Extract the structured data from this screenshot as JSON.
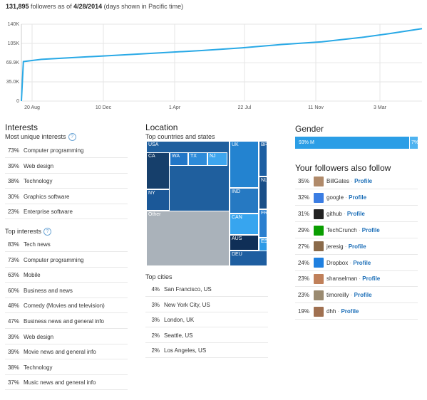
{
  "header": {
    "count": "131,895",
    "text_mid": " followers as of ",
    "date": "4/28/2014",
    "text_end": " (days shown in Pacific time)"
  },
  "chart_data": {
    "type": "line",
    "title": "",
    "y_ticks": [
      "140K",
      "105K",
      "69.9K",
      "35.0K",
      "0"
    ],
    "ylim": [
      0,
      140000
    ],
    "x_ticks": [
      "20 Aug",
      "10 Dec",
      "1 Apr",
      "22 Jul",
      "11 Nov",
      "3 Mar"
    ],
    "grid": true,
    "series": [
      {
        "color": "#29a9e6",
        "points": [
          [
            0,
            0
          ],
          [
            0.005,
            72000
          ],
          [
            0.05,
            76000
          ],
          [
            0.15,
            80000
          ],
          [
            0.25,
            84000
          ],
          [
            0.35,
            88000
          ],
          [
            0.45,
            92000
          ],
          [
            0.55,
            97000
          ],
          [
            0.65,
            103000
          ],
          [
            0.75,
            108000
          ],
          [
            0.85,
            116000
          ],
          [
            0.92,
            123000
          ],
          [
            1.0,
            131895
          ]
        ]
      }
    ]
  },
  "interests": {
    "title": "Interests",
    "unique_title": "Most unique interests",
    "unique": [
      {
        "pct": "73%",
        "name": "Computer programming"
      },
      {
        "pct": "39%",
        "name": "Web design"
      },
      {
        "pct": "38%",
        "name": "Technology"
      },
      {
        "pct": "30%",
        "name": "Graphics software"
      },
      {
        "pct": "23%",
        "name": "Enterprise software"
      }
    ],
    "top_title": "Top interests",
    "top": [
      {
        "pct": "83%",
        "name": "Tech news"
      },
      {
        "pct": "73%",
        "name": "Computer programming"
      },
      {
        "pct": "63%",
        "name": "Mobile"
      },
      {
        "pct": "60%",
        "name": "Business and news"
      },
      {
        "pct": "48%",
        "name": "Comedy (Movies and television)"
      },
      {
        "pct": "47%",
        "name": "Business news and general info"
      },
      {
        "pct": "39%",
        "name": "Web design"
      },
      {
        "pct": "39%",
        "name": "Movie news and general info"
      },
      {
        "pct": "38%",
        "name": "Technology"
      },
      {
        "pct": "37%",
        "name": "Music news and general info"
      }
    ]
  },
  "location": {
    "title": "Location",
    "sub": "Top countries and states",
    "treemap_labels": {
      "usa": "USA",
      "ca": "CA",
      "wa": "WA",
      "tx": "TX",
      "nj": "NJ",
      "ny": "NY",
      "other": "Other",
      "uk": "UK",
      "br": "BR",
      "ind": "IND",
      "nl": "NL",
      "fr": "FR",
      "can": "CAN",
      "aus": "AUS",
      "es": "ES",
      "deu": "DEU"
    },
    "cities_title": "Top cities",
    "cities": [
      {
        "pct": "4%",
        "name": "San Francisco, US"
      },
      {
        "pct": "3%",
        "name": "New York City, US"
      },
      {
        "pct": "3%",
        "name": "London, UK"
      },
      {
        "pct": "2%",
        "name": "Seattle, US"
      },
      {
        "pct": "2%",
        "name": "Los Angeles, US"
      }
    ]
  },
  "gender": {
    "title": "Gender",
    "male_label": "93% M",
    "female_label": "7%",
    "male_fraction": 0.93
  },
  "follows": {
    "title": "Your followers also follow",
    "profile_label": "Profile",
    "sep": " · ",
    "items": [
      {
        "pct": "35%",
        "name": "BillGates",
        "color": "#b08a6a"
      },
      {
        "pct": "32%",
        "name": "google",
        "color": "#3b7de3"
      },
      {
        "pct": "31%",
        "name": "github",
        "color": "#222222"
      },
      {
        "pct": "29%",
        "name": "TechCrunch",
        "color": "#0a9e01"
      },
      {
        "pct": "27%",
        "name": "jeresig",
        "color": "#8a6a4a"
      },
      {
        "pct": "24%",
        "name": "Dropbox",
        "color": "#1f80e0"
      },
      {
        "pct": "23%",
        "name": "shanselman",
        "color": "#c0805a"
      },
      {
        "pct": "23%",
        "name": "timoreilly",
        "color": "#9a8a70"
      },
      {
        "pct": "19%",
        "name": "dhh",
        "color": "#a07050"
      }
    ]
  }
}
